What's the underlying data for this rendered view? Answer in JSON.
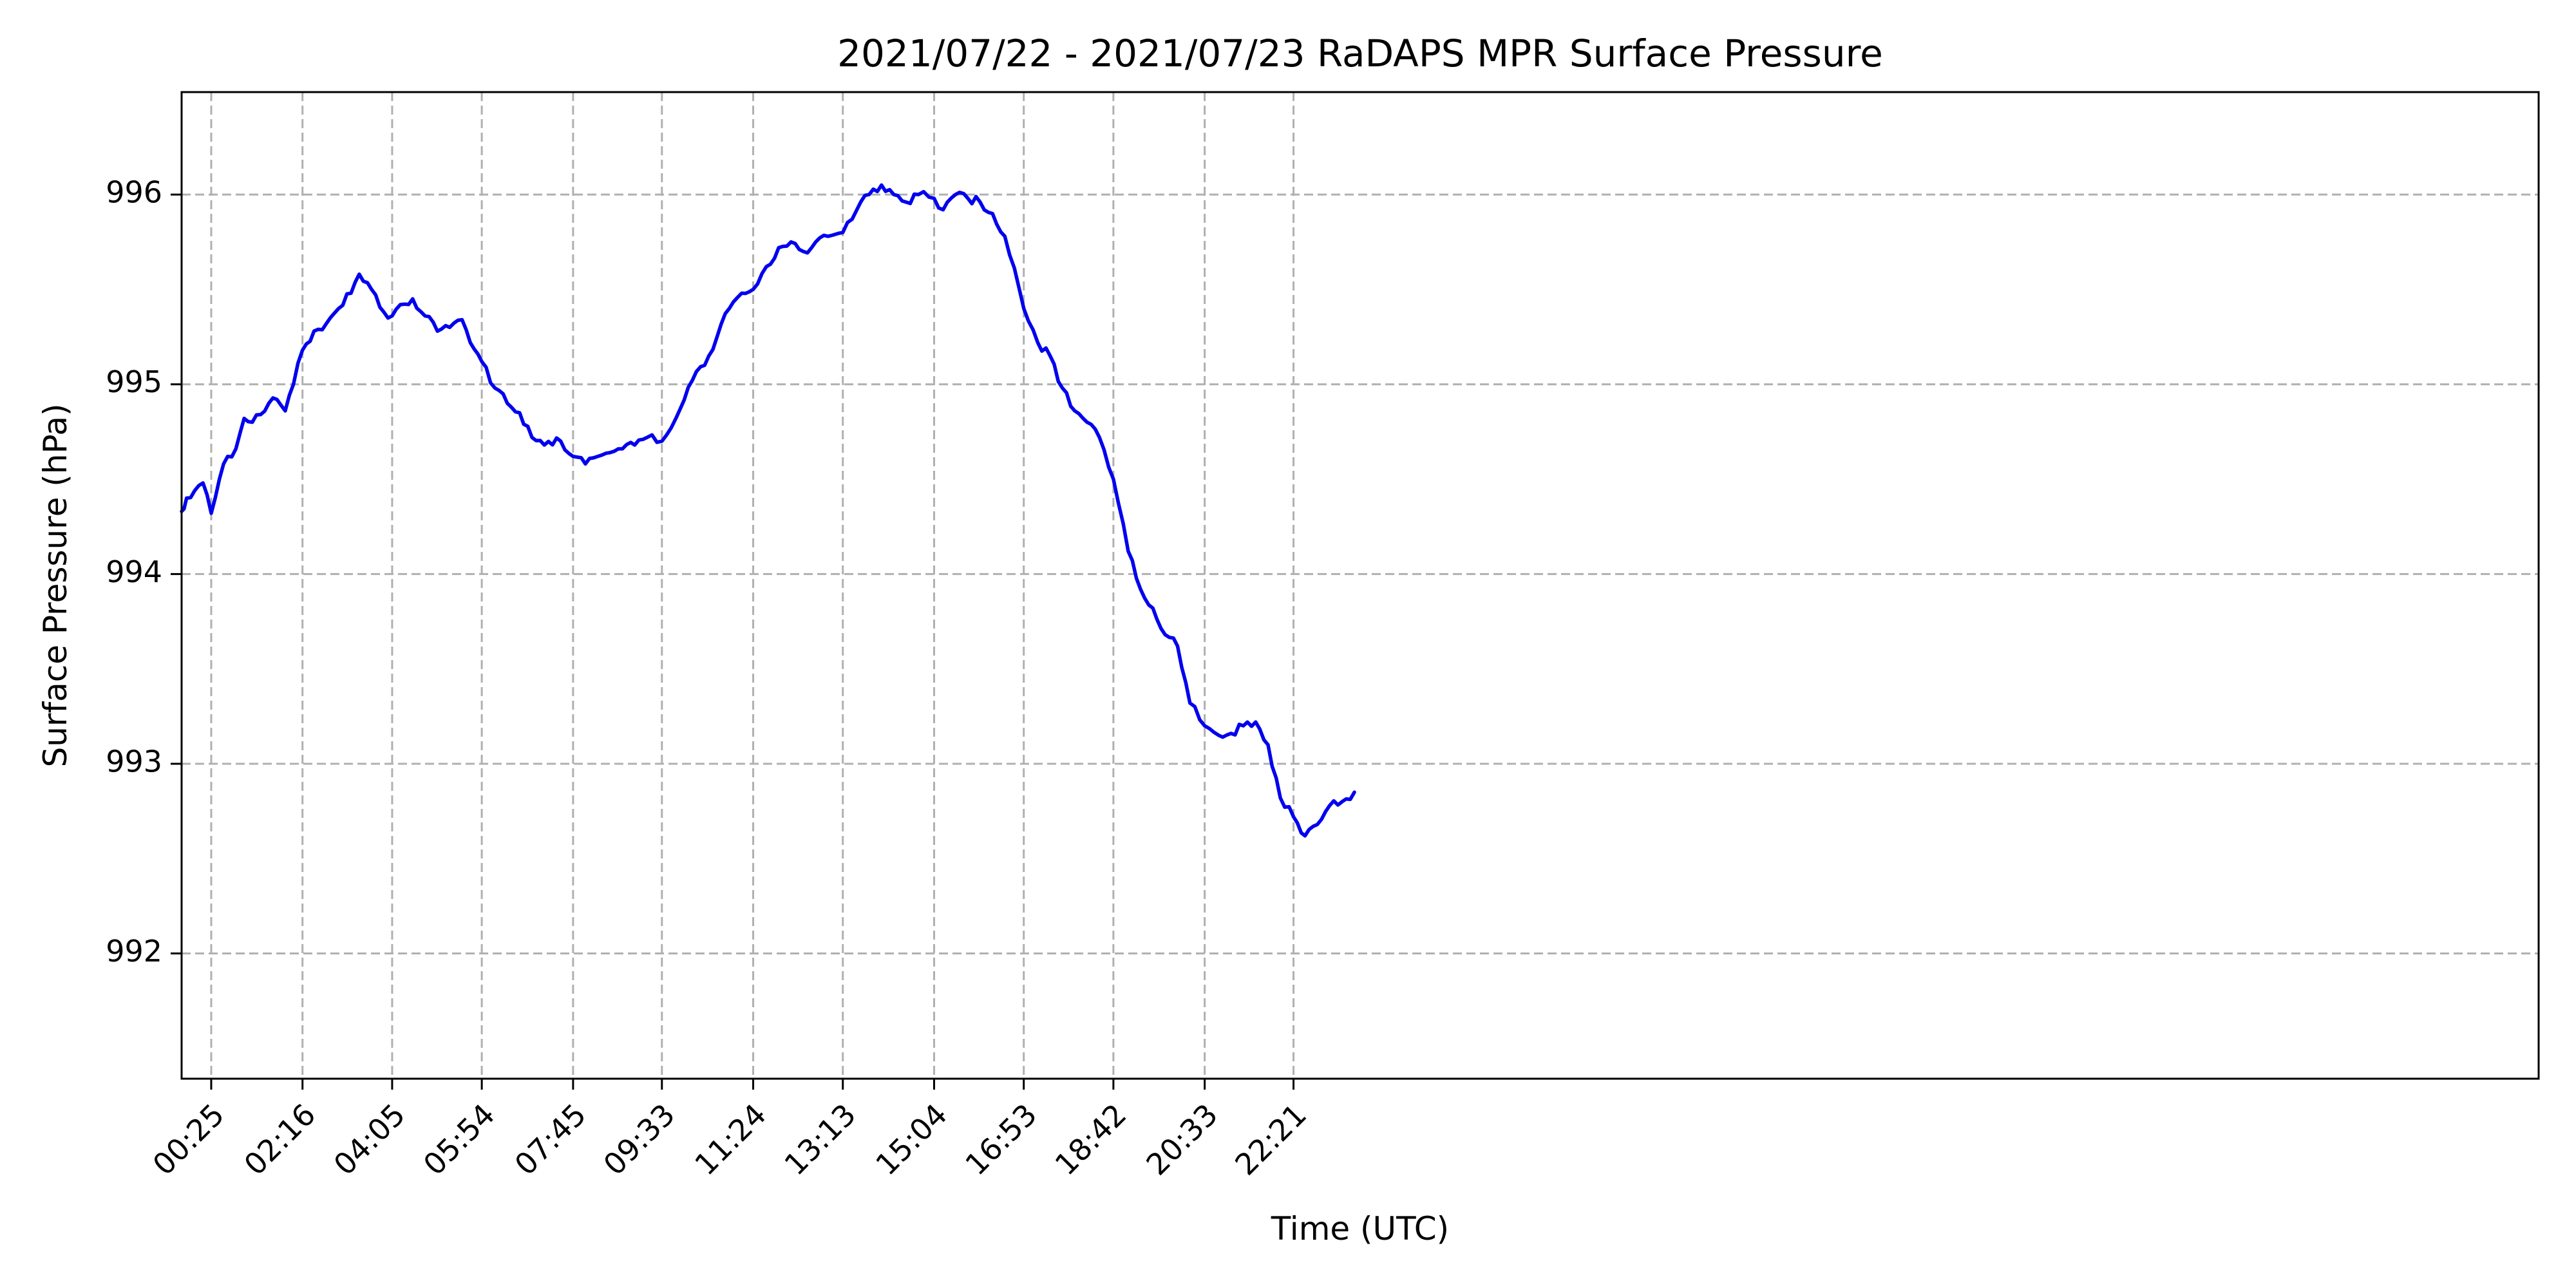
{
  "chart_data": {
    "type": "line",
    "title": "2021/07/22 - 2021/07/23 RaDAPS MPR Surface Pressure",
    "xlabel": "Time (UTC)",
    "ylabel": "Surface Pressure (hPa)",
    "xlim": [
      "2021-07-21T23:49",
      "2021-07-23T23:35"
    ],
    "ylim": [
      991.34,
      996.54
    ],
    "grid": true,
    "x_ticks": [
      {
        "t": "2021-07-22T00:25",
        "label": "00:25"
      },
      {
        "t": "2021-07-22T02:16",
        "label": "02:16"
      },
      {
        "t": "2021-07-22T04:05",
        "label": "04:05"
      },
      {
        "t": "2021-07-22T05:54",
        "label": "05:54"
      },
      {
        "t": "2021-07-22T07:45",
        "label": "07:45"
      },
      {
        "t": "2021-07-22T09:33",
        "label": "09:33"
      },
      {
        "t": "2021-07-22T11:24",
        "label": "11:24"
      },
      {
        "t": "2021-07-22T13:13",
        "label": "13:13"
      },
      {
        "t": "2021-07-22T15:04",
        "label": "15:04"
      },
      {
        "t": "2021-07-22T16:53",
        "label": "16:53"
      },
      {
        "t": "2021-07-22T18:42",
        "label": "18:42"
      },
      {
        "t": "2021-07-22T20:33",
        "label": "20:33"
      },
      {
        "t": "2021-07-22T22:21",
        "label": "22:21"
      }
    ],
    "y_ticks": [
      {
        "v": 992,
        "label": "992"
      },
      {
        "v": 993,
        "label": "993"
      },
      {
        "v": 994,
        "label": "994"
      },
      {
        "v": 995,
        "label": "995"
      },
      {
        "v": 996,
        "label": "996"
      }
    ],
    "series": [
      {
        "color": "#0000ee",
        "x": [
          "2021-07-21T23:49",
          "2021-07-21T23:55",
          "2021-07-22T00:05",
          "2021-07-22T00:15",
          "2021-07-22T00:25",
          "2021-07-22T00:35",
          "2021-07-22T00:45",
          "2021-07-22T00:55",
          "2021-07-22T01:05",
          "2021-07-22T01:15",
          "2021-07-22T01:25",
          "2021-07-22T01:35",
          "2021-07-22T01:45",
          "2021-07-22T01:55",
          "2021-07-22T02:05",
          "2021-07-22T02:16",
          "2021-07-22T02:30",
          "2021-07-22T02:45",
          "2021-07-22T03:00",
          "2021-07-22T03:15",
          "2021-07-22T03:25",
          "2021-07-22T03:40",
          "2021-07-22T03:55",
          "2021-07-22T04:05",
          "2021-07-22T04:15",
          "2021-07-22T04:30",
          "2021-07-22T04:45",
          "2021-07-22T05:00",
          "2021-07-22T05:15",
          "2021-07-22T05:30",
          "2021-07-22T05:40",
          "2021-07-22T05:54",
          "2021-07-22T06:10",
          "2021-07-22T06:25",
          "2021-07-22T06:40",
          "2021-07-22T06:55",
          "2021-07-22T07:10",
          "2021-07-22T07:30",
          "2021-07-22T07:45",
          "2021-07-22T08:00",
          "2021-07-22T08:15",
          "2021-07-22T08:30",
          "2021-07-22T08:45",
          "2021-07-22T09:00",
          "2021-07-22T09:15",
          "2021-07-22T09:33",
          "2021-07-22T09:50",
          "2021-07-22T10:10",
          "2021-07-22T10:25",
          "2021-07-22T10:40",
          "2021-07-22T10:55",
          "2021-07-22T11:10",
          "2021-07-22T11:24",
          "2021-07-22T11:40",
          "2021-07-22T11:55",
          "2021-07-22T12:10",
          "2021-07-22T12:25",
          "2021-07-22T12:40",
          "2021-07-22T12:55",
          "2021-07-22T13:13",
          "2021-07-22T13:30",
          "2021-07-22T13:45",
          "2021-07-22T14:00",
          "2021-07-22T14:15",
          "2021-07-22T14:30",
          "2021-07-22T14:45",
          "2021-07-22T15:04",
          "2021-07-22T15:15",
          "2021-07-22T15:30",
          "2021-07-22T15:45",
          "2021-07-22T16:00",
          "2021-07-22T16:15",
          "2021-07-22T16:30",
          "2021-07-22T16:53",
          "2021-07-22T17:10",
          "2021-07-22T17:25",
          "2021-07-22T17:40",
          "2021-07-22T17:55",
          "2021-07-22T18:10",
          "2021-07-22T18:25",
          "2021-07-22T18:42",
          "2021-07-22T19:00",
          "2021-07-22T19:15",
          "2021-07-22T19:30",
          "2021-07-22T19:45",
          "2021-07-22T20:00",
          "2021-07-22T20:15",
          "2021-07-22T20:33",
          "2021-07-22T20:50",
          "2021-07-22T21:05",
          "2021-07-22T21:20",
          "2021-07-22T21:35",
          "2021-07-22T21:50",
          "2021-07-22T22:05",
          "2021-07-22T22:21",
          "2021-07-22T22:35",
          "2021-07-22T22:50",
          "2021-07-22T23:05",
          "2021-07-22T23:20",
          "2021-07-22T23:35"
        ],
        "values": [
          994.33,
          994.4,
          994.44,
          994.48,
          994.32,
          994.5,
          994.62,
          994.66,
          994.82,
          994.8,
          994.84,
          994.9,
          994.92,
          994.86,
          995.0,
          995.18,
          995.28,
          995.32,
          995.4,
          995.48,
          995.58,
          995.5,
          995.38,
          995.36,
          995.42,
          995.45,
          995.36,
          995.28,
          995.3,
          995.34,
          995.22,
          995.12,
          994.98,
          994.9,
          994.85,
          994.72,
          994.68,
          994.7,
          994.62,
          994.58,
          994.62,
          994.64,
          994.66,
          994.68,
          994.72,
          994.7,
          994.82,
          995.02,
          995.1,
          995.25,
          995.4,
          995.48,
          995.5,
          995.62,
          995.72,
          995.75,
          995.7,
          995.75,
          995.78,
          995.8,
          995.92,
          996.0,
          996.05,
          996.0,
          995.96,
          996.0,
          995.98,
          995.92,
          996.0,
          995.98,
          995.96,
          995.9,
          995.78,
          995.4,
          995.22,
          995.15,
          994.98,
          994.86,
          994.8,
          994.72,
          994.5,
          994.12,
          993.92,
          993.82,
          993.68,
          993.62,
          993.32,
          993.2,
          993.15,
          993.16,
          993.2,
          993.22,
          993.1,
          992.82,
          992.72,
          992.62,
          992.68,
          992.78,
          992.8,
          992.85
        ]
      }
    ]
  }
}
